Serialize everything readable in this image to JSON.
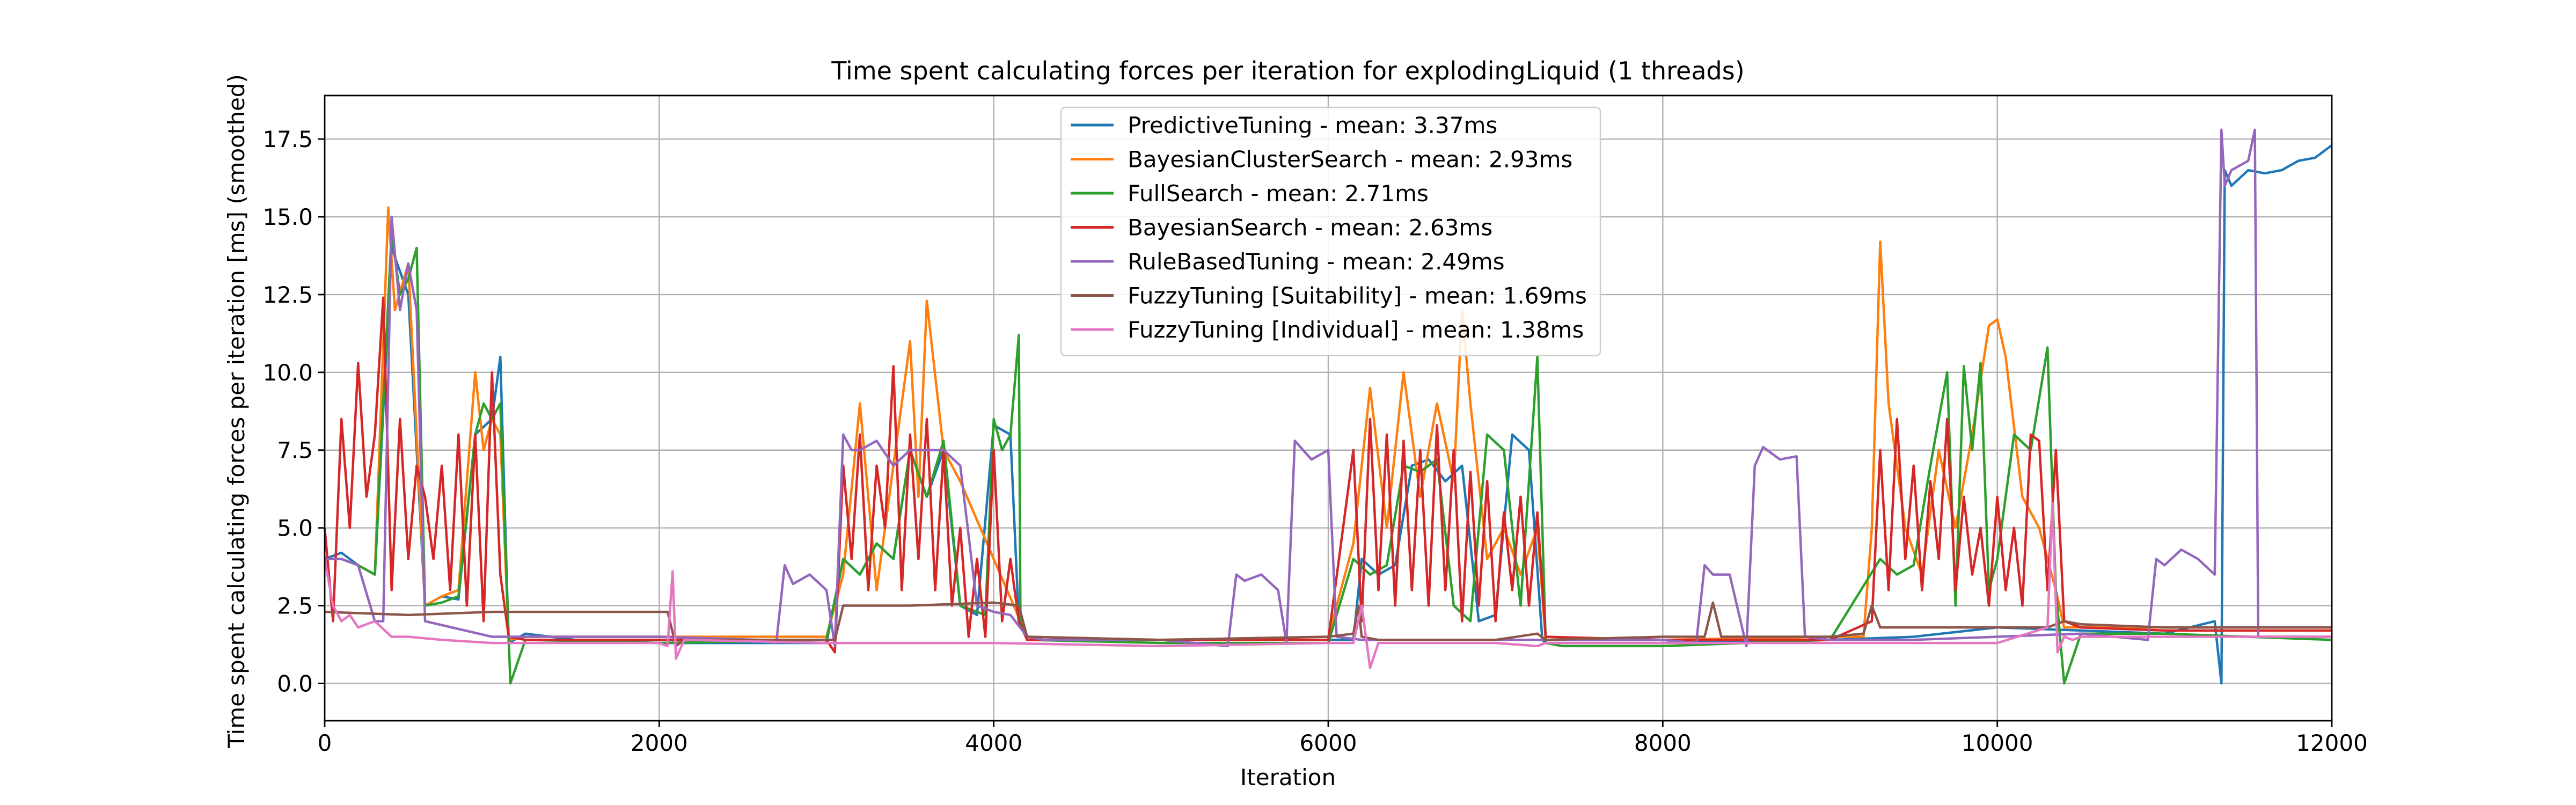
{
  "chart_data": {
    "type": "line",
    "title": "Time spent calculating forces per iteration for explodingLiquid (1 threads)",
    "xlabel": "Iteration",
    "ylabel": "Time spent calculating forces per iteration [ms] (smoothed)",
    "xlim": [
      0,
      12000
    ],
    "ylim": [
      -1.2,
      18.9
    ],
    "xticks": [
      0,
      2000,
      4000,
      6000,
      8000,
      10000,
      12000
    ],
    "xtick_labels": [
      "0",
      "2000",
      "4000",
      "6000",
      "8000",
      "10000",
      "12000"
    ],
    "yticks": [
      0.0,
      2.5,
      5.0,
      7.5,
      10.0,
      12.5,
      15.0,
      17.5
    ],
    "ytick_labels": [
      "0.0",
      "2.5",
      "5.0",
      "7.5",
      "10.0",
      "12.5",
      "15.0",
      "17.5"
    ],
    "grid": true,
    "legend_position": "top-center",
    "series": [
      {
        "name": "PredictiveTuning - mean: 3.37ms",
        "color": "#1f77b4",
        "x": [
          0,
          100,
          200,
          300,
          400,
          500,
          600,
          700,
          800,
          900,
          1000,
          1050,
          1100,
          1200,
          1500,
          2000,
          2500,
          3000,
          3100,
          3200,
          3300,
          3400,
          3500,
          3600,
          3700,
          3800,
          3900,
          4000,
          4100,
          4150,
          4200,
          4300,
          5000,
          6000,
          6150,
          6200,
          6300,
          6400,
          6500,
          6600,
          6700,
          6800,
          6900,
          7000,
          7100,
          7200,
          7280,
          7300,
          8000,
          9000,
          9500,
          10000,
          10500,
          11000,
          11300,
          11340,
          11360,
          11400,
          11500,
          11600,
          11700,
          11800,
          11900,
          12000
        ],
        "y": [
          4.0,
          4.2,
          3.8,
          3.5,
          14.0,
          12.5,
          2.5,
          2.8,
          2.7,
          8.0,
          8.5,
          10.5,
          1.3,
          1.6,
          1.4,
          1.3,
          1.3,
          1.3,
          4.0,
          3.5,
          4.5,
          4.0,
          7.5,
          6.0,
          7.5,
          2.5,
          2.2,
          8.3,
          8.0,
          2.0,
          1.4,
          1.4,
          1.4,
          1.4,
          1.4,
          4.0,
          3.5,
          3.8,
          7.0,
          7.2,
          6.5,
          7.0,
          2.0,
          2.2,
          8.0,
          7.5,
          1.4,
          1.3,
          1.3,
          1.4,
          1.5,
          1.8,
          1.7,
          1.6,
          2.0,
          0.0,
          16.5,
          16.0,
          16.5,
          16.4,
          16.5,
          16.8,
          16.9,
          17.3
        ]
      },
      {
        "name": "BayesianClusterSearch - mean: 2.93ms",
        "color": "#ff7f0e",
        "x": [
          0,
          100,
          200,
          300,
          380,
          420,
          500,
          600,
          700,
          800,
          900,
          950,
          1000,
          1050,
          1100,
          1200,
          2000,
          3000,
          3100,
          3200,
          3300,
          3400,
          3500,
          3550,
          3600,
          3700,
          3800,
          4200,
          5000,
          6000,
          6150,
          6250,
          6350,
          6450,
          6550,
          6650,
          6750,
          6800,
          6850,
          6950,
          7050,
          7150,
          7250,
          7300,
          8000,
          9000,
          9200,
          9250,
          9300,
          9350,
          9450,
          9550,
          9650,
          9750,
          9850,
          9950,
          10000,
          10050,
          10150,
          10250,
          10350,
          10400,
          11000,
          12000
        ],
        "y": [
          4.0,
          4.0,
          3.8,
          3.5,
          15.3,
          12.0,
          13.5,
          2.5,
          2.8,
          3.0,
          10.0,
          7.5,
          8.5,
          8.0,
          1.4,
          1.5,
          1.5,
          1.5,
          3.5,
          9.0,
          3.0,
          7.0,
          11.0,
          6.0,
          12.3,
          7.5,
          6.5,
          1.5,
          1.4,
          1.5,
          4.5,
          9.5,
          5.0,
          10.0,
          6.0,
          9.0,
          6.5,
          12.0,
          9.0,
          4.0,
          5.0,
          3.5,
          5.0,
          1.4,
          1.4,
          1.5,
          1.5,
          5.0,
          14.2,
          9.0,
          5.0,
          3.5,
          7.5,
          5.0,
          8.0,
          11.5,
          11.7,
          10.5,
          6.0,
          5.0,
          3.0,
          1.8,
          1.8,
          1.8
        ]
      },
      {
        "name": "FullSearch - mean: 2.71ms",
        "color": "#2ca02c",
        "x": [
          0,
          100,
          200,
          300,
          400,
          450,
          500,
          550,
          600,
          700,
          800,
          900,
          950,
          1000,
          1050,
          1100,
          1110,
          1200,
          2000,
          3000,
          3100,
          3200,
          3300,
          3400,
          3500,
          3600,
          3700,
          3800,
          3900,
          3950,
          4000,
          4050,
          4100,
          4150,
          4160,
          4200,
          5000,
          6000,
          6150,
          6250,
          6350,
          6450,
          6550,
          6650,
          6750,
          6850,
          6950,
          7050,
          7150,
          7250,
          7300,
          7400,
          8000,
          9000,
          9300,
          9400,
          9500,
          9600,
          9700,
          9750,
          9800,
          9850,
          9900,
          9950,
          10000,
          10100,
          10200,
          10300,
          10350,
          10400,
          10500,
          11000,
          12000
        ],
        "y": [
          4.0,
          4.0,
          3.8,
          3.5,
          14.5,
          12.5,
          13.0,
          14.0,
          2.5,
          2.6,
          2.8,
          8.0,
          9.0,
          8.5,
          9.0,
          1.5,
          0.0,
          1.4,
          1.3,
          1.4,
          4.0,
          3.5,
          4.5,
          4.0,
          7.5,
          6.0,
          7.8,
          2.5,
          2.3,
          2.2,
          8.5,
          7.5,
          8.0,
          11.2,
          2.0,
          1.4,
          1.3,
          1.3,
          4.0,
          3.5,
          3.8,
          7.0,
          6.8,
          7.2,
          2.5,
          2.0,
          8.0,
          7.5,
          2.5,
          10.5,
          1.3,
          1.2,
          1.2,
          1.4,
          4.0,
          3.5,
          3.8,
          7.0,
          10.0,
          2.5,
          10.2,
          7.5,
          10.3,
          3.0,
          4.0,
          8.0,
          7.5,
          10.8,
          3.0,
          0.0,
          1.6,
          1.6,
          1.4
        ]
      },
      {
        "name": "BayesianSearch - mean: 2.63ms",
        "color": "#d62728",
        "x": [
          0,
          50,
          100,
          150,
          200,
          250,
          300,
          350,
          400,
          450,
          500,
          550,
          600,
          650,
          700,
          750,
          800,
          850,
          900,
          950,
          1000,
          1050,
          1100,
          1200,
          2000,
          3000,
          3050,
          3100,
          3150,
          3200,
          3250,
          3300,
          3350,
          3400,
          3450,
          3500,
          3550,
          3600,
          3650,
          3700,
          3750,
          3800,
          3850,
          3900,
          3950,
          4000,
          4050,
          4100,
          4150,
          4200,
          5000,
          6000,
          6150,
          6200,
          6250,
          6300,
          6350,
          6400,
          6450,
          6500,
          6550,
          6600,
          6650,
          6700,
          6750,
          6800,
          6850,
          6900,
          6950,
          7000,
          7050,
          7100,
          7150,
          7200,
          7250,
          7300,
          8000,
          9000,
          9250,
          9300,
          9350,
          9400,
          9450,
          9500,
          9550,
          9600,
          9650,
          9700,
          9750,
          9800,
          9850,
          9900,
          9950,
          10000,
          10050,
          10100,
          10150,
          10200,
          10250,
          10300,
          10350,
          10400,
          10500,
          11000,
          12000
        ],
        "y": [
          5.0,
          2.0,
          8.5,
          5.0,
          10.3,
          6.0,
          8.0,
          12.4,
          3.0,
          8.5,
          4.0,
          7.0,
          6.0,
          4.0,
          7.0,
          3.0,
          8.0,
          2.5,
          8.0,
          2.0,
          10.0,
          3.5,
          1.5,
          1.4,
          1.4,
          1.4,
          1.0,
          7.0,
          4.0,
          8.0,
          3.0,
          7.0,
          5.0,
          10.2,
          3.0,
          8.0,
          4.0,
          8.5,
          3.0,
          7.5,
          2.5,
          5.0,
          1.5,
          4.0,
          1.5,
          7.5,
          2.0,
          4.0,
          2.0,
          1.4,
          1.4,
          1.4,
          7.5,
          2.0,
          8.5,
          3.0,
          8.0,
          2.5,
          7.8,
          3.0,
          7.5,
          2.5,
          8.3,
          3.0,
          7.5,
          2.0,
          6.8,
          2.5,
          6.5,
          2.0,
          5.5,
          3.0,
          6.0,
          2.5,
          5.5,
          1.5,
          1.4,
          1.4,
          2.0,
          7.5,
          3.0,
          8.5,
          4.0,
          7.0,
          3.0,
          6.5,
          4.0,
          8.5,
          3.0,
          6.0,
          3.5,
          5.0,
          2.5,
          6.0,
          3.0,
          5.0,
          2.5,
          8.0,
          7.8,
          3.0,
          7.5,
          2.0,
          1.8,
          1.7,
          1.7
        ]
      },
      {
        "name": "RuleBasedTuning - mean: 2.49ms",
        "color": "#9467bd",
        "x": [
          0,
          100,
          200,
          300,
          350,
          400,
          450,
          500,
          550,
          600,
          1000,
          2000,
          2600,
          2700,
          2750,
          2800,
          2900,
          3000,
          3050,
          3100,
          3150,
          3200,
          3300,
          3400,
          3500,
          3600,
          3700,
          3800,
          3900,
          4000,
          4100,
          4200,
          4300,
          5000,
          5400,
          5450,
          5500,
          5600,
          5700,
          5750,
          5800,
          5900,
          6000,
          6050,
          6200,
          7000,
          7250,
          8000,
          8200,
          8250,
          8300,
          8400,
          8500,
          8550,
          8600,
          8700,
          8800,
          8850,
          9000,
          9500,
          10000,
          10500,
          10900,
          10950,
          11000,
          11100,
          11200,
          11300,
          11340,
          11360,
          11400,
          11500,
          11540,
          11560,
          11600,
          11700,
          12000
        ],
        "y": [
          4.0,
          4.0,
          3.8,
          2.0,
          2.0,
          15.0,
          12.0,
          13.5,
          12.0,
          2.0,
          1.5,
          1.5,
          1.4,
          1.3,
          3.8,
          3.2,
          3.5,
          3.0,
          1.2,
          8.0,
          7.5,
          7.5,
          7.8,
          7.0,
          7.5,
          7.5,
          7.5,
          7.0,
          2.5,
          2.3,
          2.2,
          1.5,
          1.4,
          1.4,
          1.2,
          3.5,
          3.3,
          3.5,
          3.0,
          1.3,
          7.8,
          7.2,
          7.5,
          1.5,
          1.4,
          1.4,
          1.4,
          1.4,
          1.3,
          3.8,
          3.5,
          3.5,
          1.2,
          7.0,
          7.6,
          7.2,
          7.3,
          1.5,
          1.4,
          1.4,
          1.5,
          1.6,
          1.4,
          4.0,
          3.8,
          4.3,
          4.0,
          3.5,
          17.8,
          16.0,
          16.5,
          16.8,
          17.8,
          1.5,
          1.5,
          1.5,
          1.5
        ]
      },
      {
        "name": "FuzzyTuning [Suitability] - mean: 1.69ms",
        "color": "#8c564b",
        "x": [
          0,
          500,
          1000,
          1500,
          2000,
          2050,
          2100,
          2150,
          3000,
          3050,
          3100,
          3500,
          4000,
          4150,
          4200,
          5000,
          6000,
          6150,
          6180,
          6200,
          6300,
          7000,
          7250,
          7300,
          8000,
          8250,
          8300,
          8350,
          9000,
          9200,
          9250,
          9300,
          10000,
          10300,
          10400,
          10500,
          11000,
          11500,
          12000
        ],
        "y": [
          2.3,
          2.2,
          2.3,
          2.3,
          2.3,
          2.3,
          1.2,
          1.4,
          1.4,
          1.4,
          2.5,
          2.5,
          2.6,
          2.5,
          1.5,
          1.4,
          1.5,
          1.6,
          2.5,
          1.5,
          1.4,
          1.4,
          1.6,
          1.4,
          1.5,
          1.5,
          2.6,
          1.5,
          1.5,
          1.6,
          2.5,
          1.8,
          1.8,
          1.8,
          2.0,
          1.9,
          1.8,
          1.8,
          1.8
        ]
      },
      {
        "name": "FuzzyTuning [Individual] - mean: 1.38ms",
        "color": "#e377c2",
        "x": [
          0,
          50,
          100,
          150,
          200,
          300,
          400,
          500,
          700,
          1000,
          1500,
          2000,
          2050,
          2080,
          2100,
          2150,
          3000,
          4000,
          5000,
          6000,
          6150,
          6200,
          6250,
          6300,
          7000,
          7250,
          7300,
          8000,
          9000,
          10000,
          10300,
          10330,
          10360,
          10400,
          10450,
          10500,
          11000,
          12000
        ],
        "y": [
          4.0,
          2.5,
          2.0,
          2.2,
          1.8,
          2.0,
          1.5,
          1.5,
          1.4,
          1.3,
          1.3,
          1.3,
          1.2,
          3.6,
          0.8,
          1.4,
          1.3,
          1.3,
          1.2,
          1.3,
          1.3,
          2.5,
          0.5,
          1.3,
          1.3,
          1.2,
          1.3,
          1.3,
          1.3,
          1.3,
          1.8,
          5.8,
          1.0,
          1.5,
          1.4,
          1.5,
          1.5,
          1.5
        ]
      }
    ]
  }
}
